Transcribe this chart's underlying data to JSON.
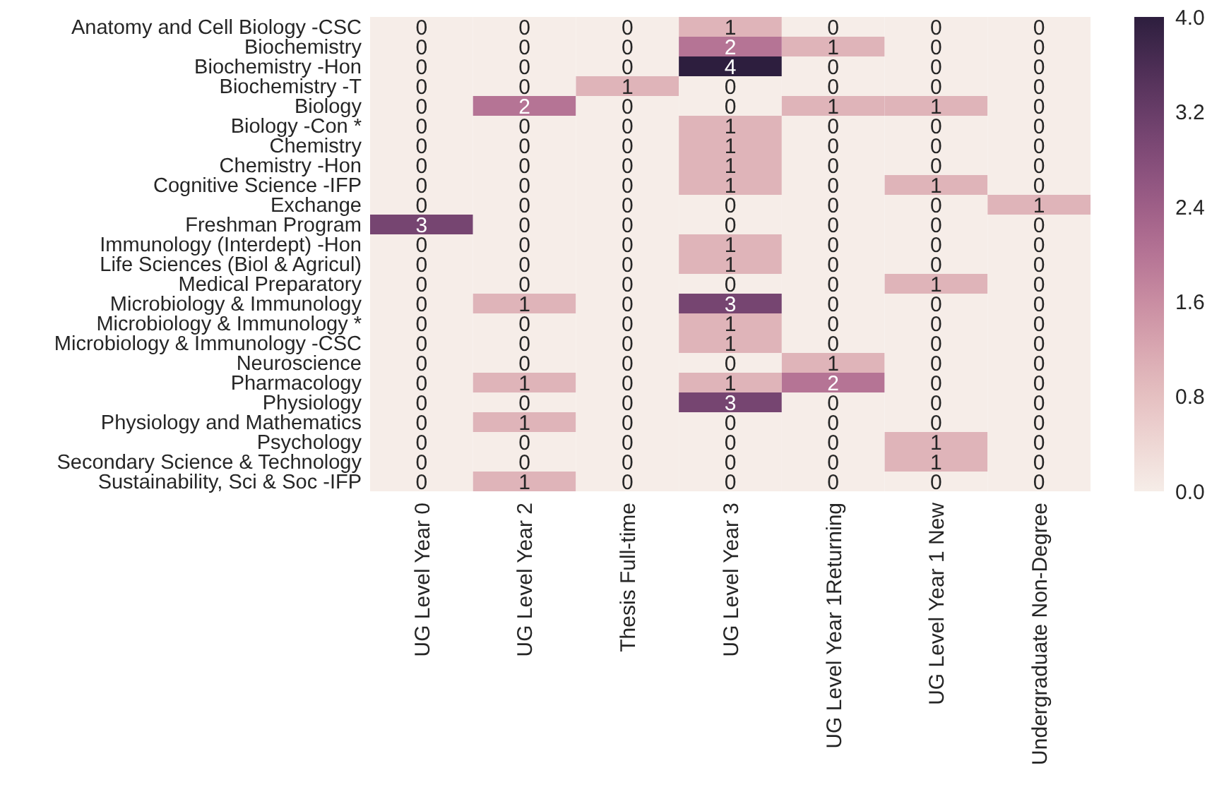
{
  "chart_data": {
    "type": "heatmap",
    "categories": [
      "UG Level Year 0",
      "UG Level Year 2",
      "Thesis Full-time",
      "UG Level Year 3",
      "UG Level  Year 1Returning",
      "UG Level Year 1 New",
      "Undergraduate Non-Degree"
    ],
    "y_categories": [
      "Anatomy and Cell Biology -CSC",
      "Biochemistry",
      "Biochemistry -Hon",
      "Biochemistry -T",
      "Biology",
      "Biology -Con *",
      "Chemistry",
      "Chemistry -Hon",
      "Cognitive Science -IFP",
      "Exchange",
      "Freshman Program",
      "Immunology (Interdept) -Hon",
      "Life Sciences (Biol & Agricul)",
      "Medical Preparatory",
      "Microbiology & Immunology",
      "Microbiology & Immunology *",
      "Microbiology & Immunology -CSC",
      "Neuroscience",
      "Pharmacology",
      "Physiology",
      "Physiology and Mathematics",
      "Psychology",
      "Secondary Science & Technology",
      "Sustainability, Sci & Soc -IFP"
    ],
    "cells": [
      [
        0,
        0,
        0,
        1,
        0,
        0,
        0
      ],
      [
        0,
        0,
        0,
        2,
        1,
        0,
        0
      ],
      [
        0,
        0,
        0,
        4,
        0,
        0,
        0
      ],
      [
        0,
        0,
        1,
        0,
        0,
        0,
        0
      ],
      [
        0,
        2,
        0,
        0,
        1,
        1,
        0
      ],
      [
        0,
        0,
        0,
        1,
        0,
        0,
        0
      ],
      [
        0,
        0,
        0,
        1,
        0,
        0,
        0
      ],
      [
        0,
        0,
        0,
        1,
        0,
        0,
        0
      ],
      [
        0,
        0,
        0,
        1,
        0,
        1,
        0
      ],
      [
        0,
        0,
        0,
        0,
        0,
        0,
        1
      ],
      [
        3,
        0,
        0,
        0,
        0,
        0,
        0
      ],
      [
        0,
        0,
        0,
        1,
        0,
        0,
        0
      ],
      [
        0,
        0,
        0,
        1,
        0,
        0,
        0
      ],
      [
        0,
        0,
        0,
        0,
        0,
        1,
        0
      ],
      [
        0,
        1,
        0,
        3,
        0,
        0,
        0
      ],
      [
        0,
        0,
        0,
        1,
        0,
        0,
        0
      ],
      [
        0,
        0,
        0,
        1,
        0,
        0,
        0
      ],
      [
        0,
        0,
        0,
        0,
        1,
        0,
        0
      ],
      [
        0,
        1,
        0,
        1,
        2,
        0,
        0
      ],
      [
        0,
        0,
        0,
        3,
        0,
        0,
        0
      ],
      [
        0,
        1,
        0,
        0,
        0,
        0,
        0
      ],
      [
        0,
        0,
        0,
        0,
        0,
        1,
        0
      ],
      [
        0,
        0,
        0,
        0,
        0,
        1,
        0
      ],
      [
        0,
        1,
        0,
        0,
        0,
        0,
        0
      ]
    ],
    "data_labels": true,
    "clim": [
      0,
      4
    ],
    "cticks": [
      {
        "value": 0,
        "label": "0.0"
      },
      {
        "value": 0.8,
        "label": "0.8"
      },
      {
        "value": 1.6,
        "label": "1.6"
      },
      {
        "value": 2.4,
        "label": "2.4"
      },
      {
        "value": 3.2,
        "label": "3.2"
      },
      {
        "value": 4,
        "label": "4.0"
      }
    ]
  }
}
